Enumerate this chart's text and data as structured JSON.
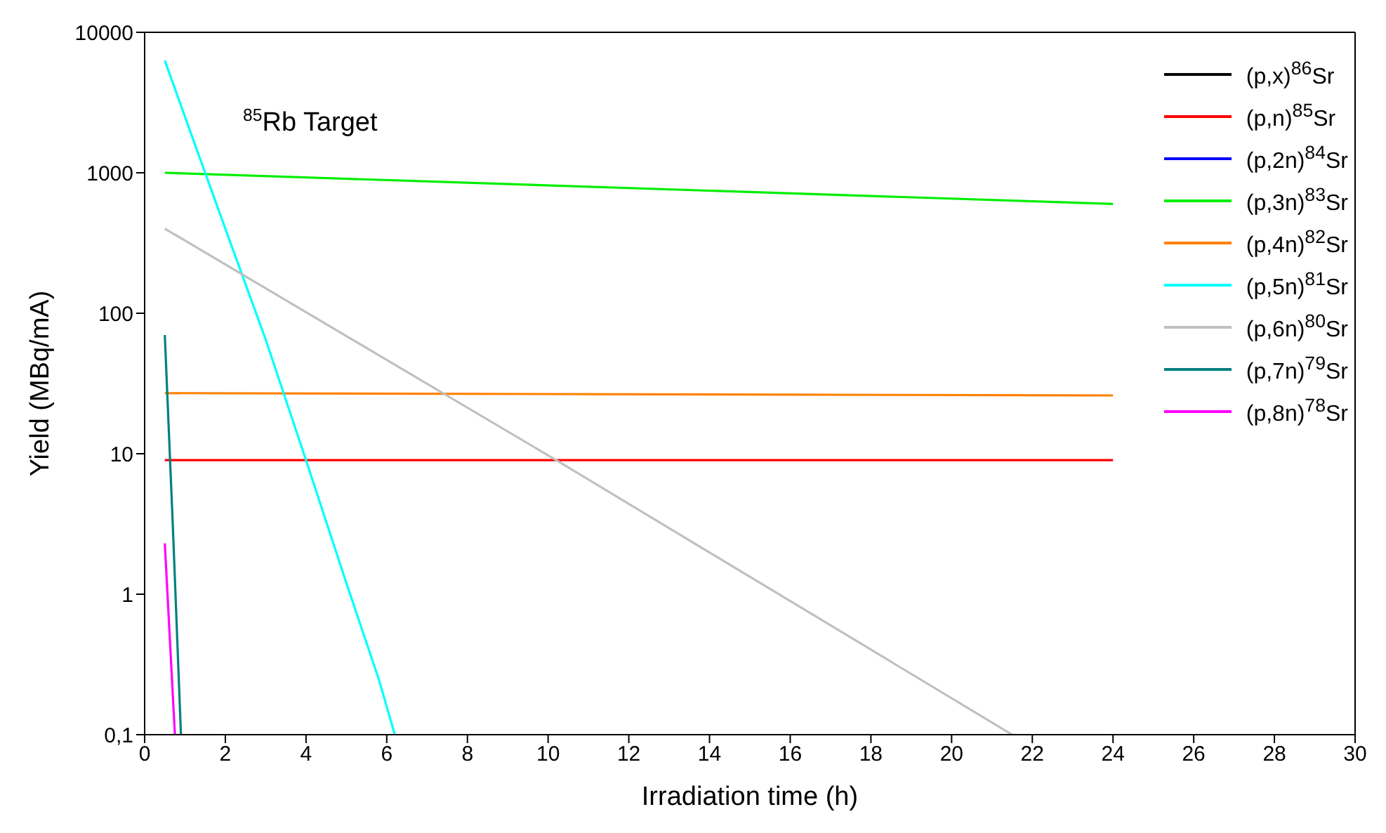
{
  "chart_data": {
    "type": "line",
    "xlabel": "Irradiation time (h)",
    "ylabel": "Yield (MBq/mA)",
    "annotations": [
      "$^{85}$Rb Target"
    ],
    "log": "y",
    "xlim": [
      0,
      30
    ],
    "xticks": [
      0,
      2,
      4,
      6,
      8,
      10,
      12,
      14,
      16,
      18,
      20,
      22,
      24,
      26,
      28,
      30
    ],
    "ylim": [
      0.1,
      10000
    ],
    "yticks": [
      {
        "value": 0.1,
        "label": "0,1"
      },
      1,
      10,
      100,
      1000,
      10000
    ],
    "legend": "top right",
    "marker": "none",
    "line_style": "solid",
    "series": [
      {
        "name": "(p,x)$^{86}$Sr",
        "color": "#000000"
      },
      {
        "name": "(p,n)$^{85}$Sr",
        "color": "#ff0000",
        "x": [
          0.5,
          24
        ],
        "values": [
          9,
          9
        ]
      },
      {
        "name": "(p,2n)$^{84}$Sr",
        "color": "#0000ff"
      },
      {
        "name": "(p,3n)$^{83}$Sr",
        "color": "#00ee00",
        "x": [
          0.5,
          24
        ],
        "values": [
          1000,
          600
        ]
      },
      {
        "name": "(p,4n)$^{82}$Sr",
        "color": "#ff8000",
        "x": [
          0.5,
          24
        ],
        "values": [
          27,
          26
        ]
      },
      {
        "name": "(p,5n)$^{81}$Sr",
        "color": "#00ffff",
        "x": [
          0.5,
          1,
          2,
          3,
          4,
          5,
          5.8,
          6.2
        ],
        "values": [
          6300,
          2500,
          400,
          65,
          9,
          1.2,
          0.25,
          0.1
        ]
      },
      {
        "name": "(p,6n)$^{80}$Sr",
        "color": "#c0c0c0",
        "x": [
          0.5,
          10.2,
          21.5
        ],
        "values": [
          400,
          9,
          0.1
        ]
      },
      {
        "name": "(p,7n)$^{79}$Sr",
        "color": "#008080",
        "x": [
          0.5,
          0.7,
          0.9
        ],
        "values": [
          70,
          3,
          0.1
        ]
      },
      {
        "name": "(p,8n)$^{78}$Sr",
        "color": "#ff00ff",
        "x": [
          0.5,
          0.75
        ],
        "values": [
          2.3,
          0.1
        ]
      }
    ]
  }
}
